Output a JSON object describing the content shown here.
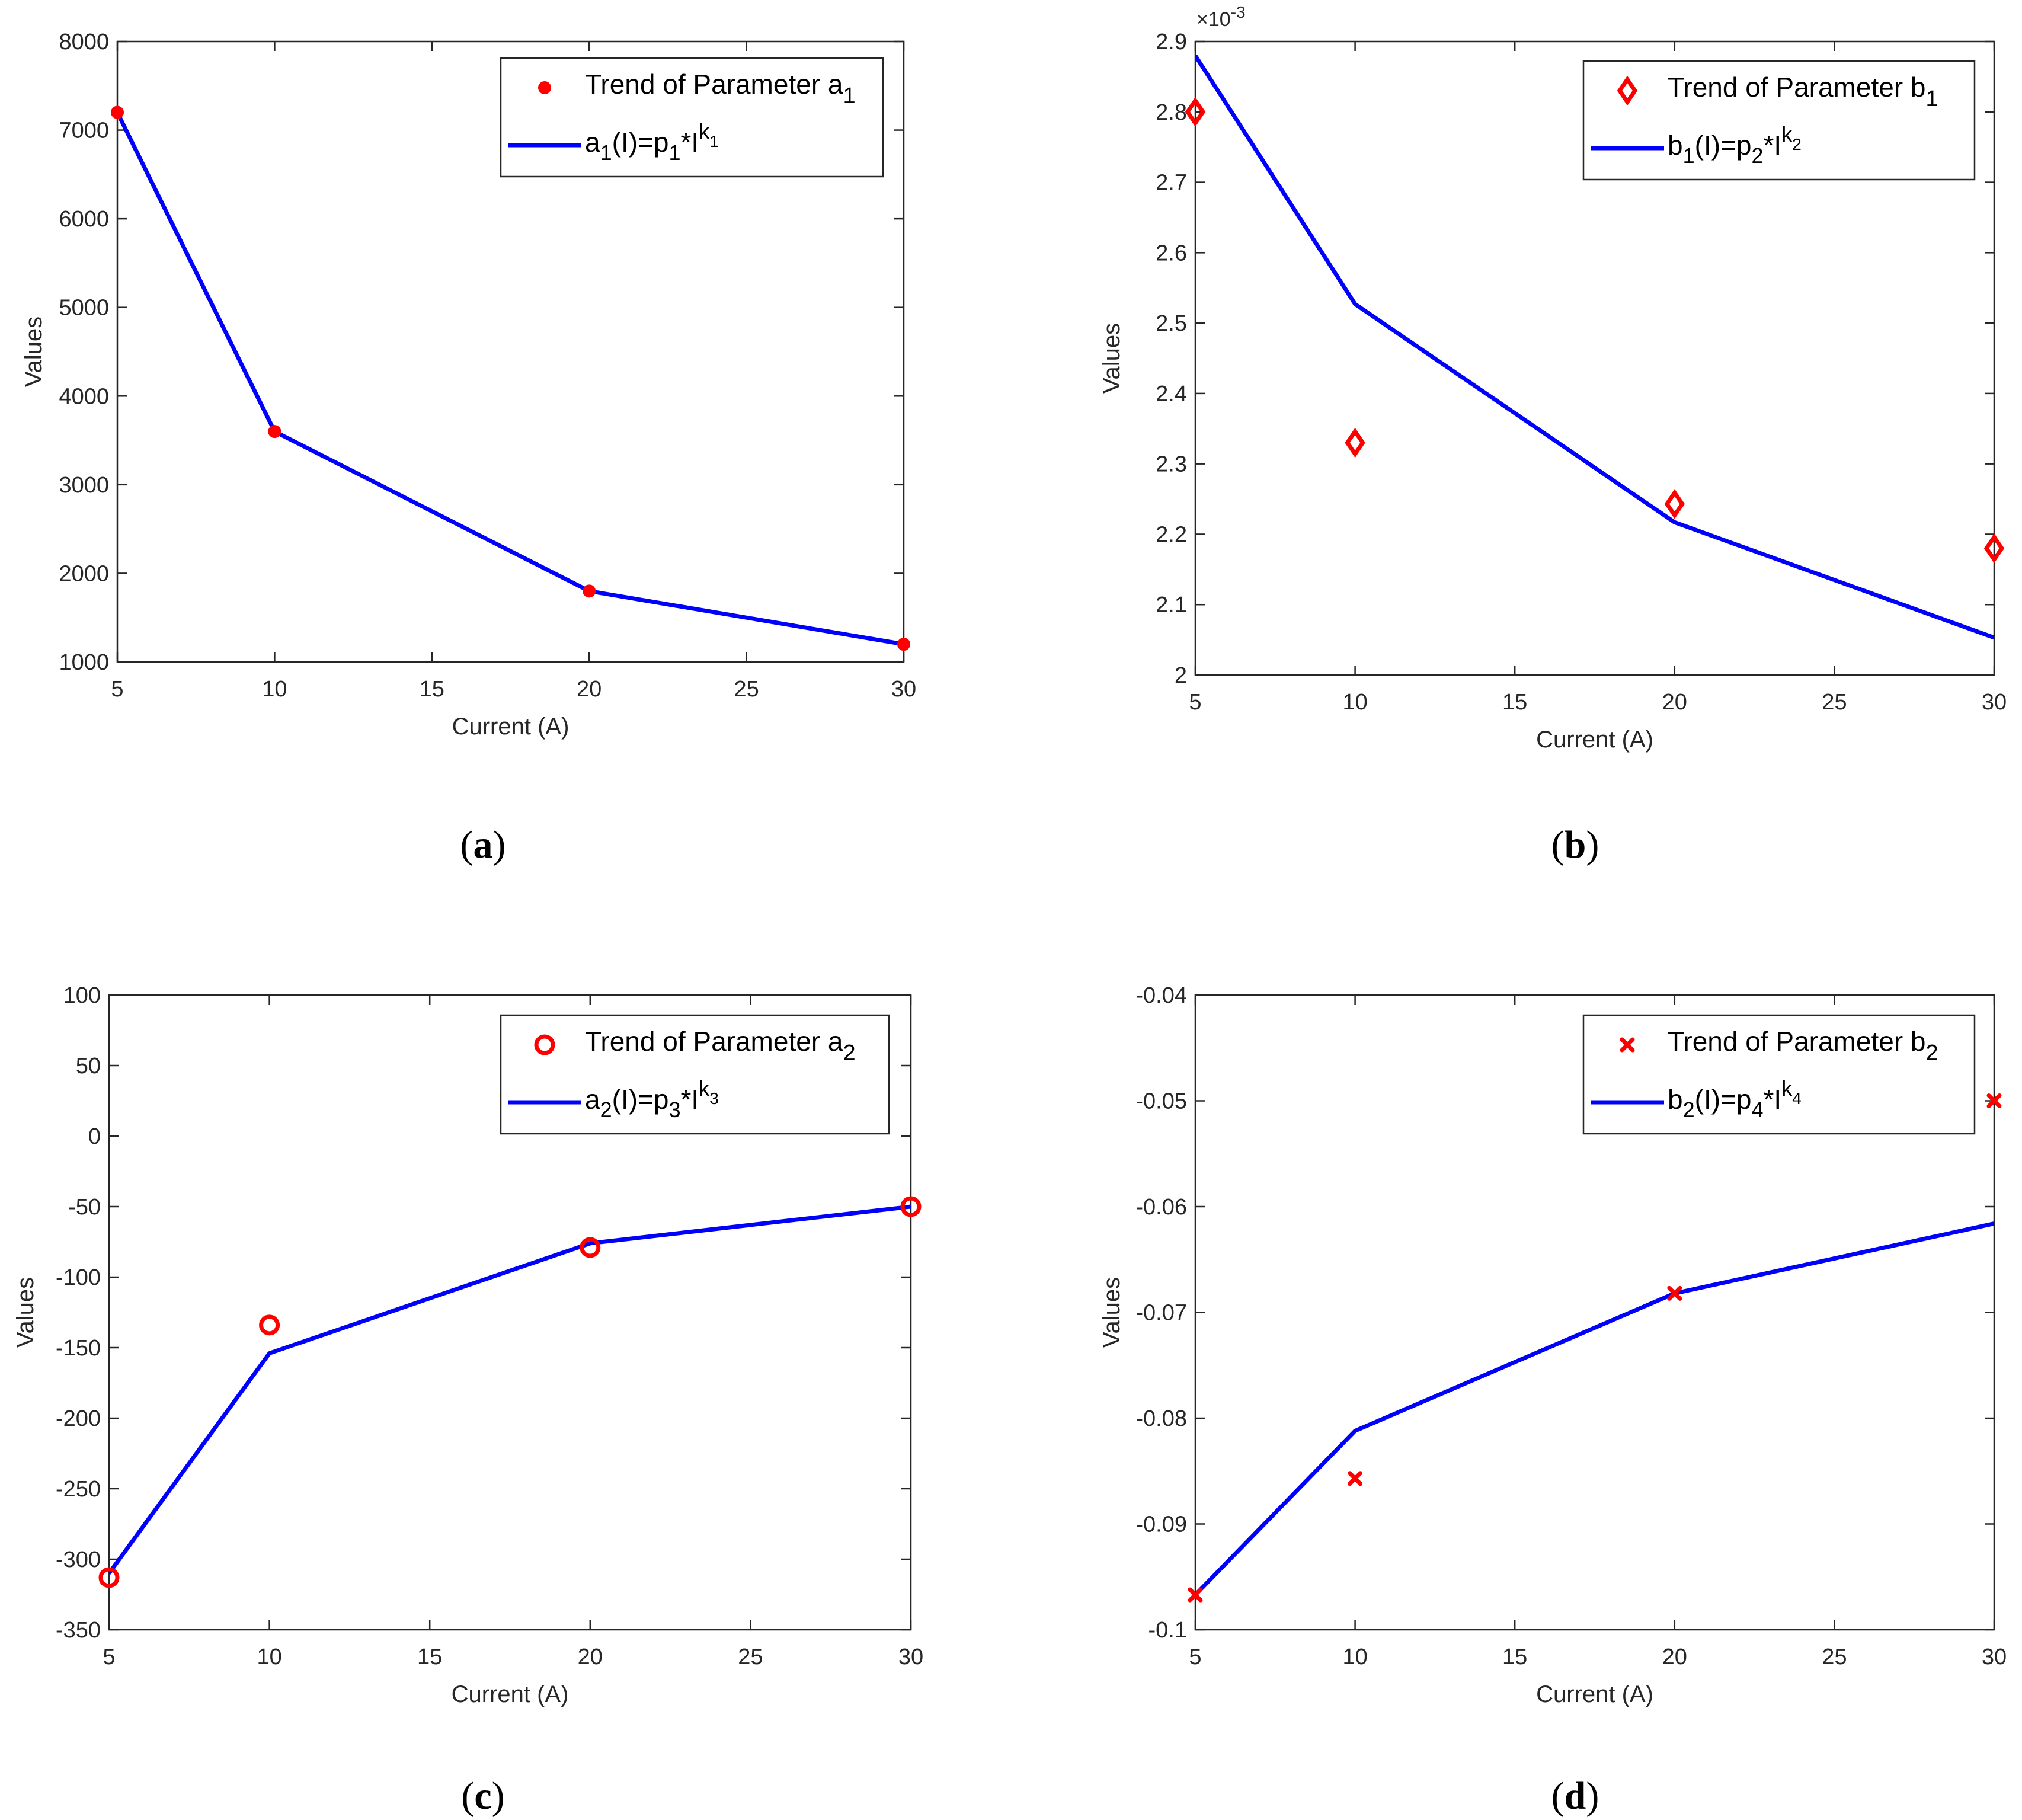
{
  "figure": {
    "panels": [
      {
        "id": "a",
        "caption": "a"
      },
      {
        "id": "b",
        "caption": "b"
      },
      {
        "id": "c",
        "caption": "c"
      },
      {
        "id": "d",
        "caption": "d"
      }
    ]
  },
  "chart_data": [
    {
      "panel": "a",
      "type": "line",
      "xlabel": "Current (A)",
      "ylabel": "Values",
      "xlim": [
        5,
        30
      ],
      "ylim": [
        1000,
        8000
      ],
      "xticks": [
        5,
        10,
        15,
        20,
        25,
        30
      ],
      "yticks": [
        1000,
        2000,
        3000,
        4000,
        5000,
        6000,
        7000,
        8000
      ],
      "tick_labels_x": [
        "5",
        "10",
        "15",
        "20",
        "25",
        "30"
      ],
      "tick_labels_y": [
        "1000",
        "2000",
        "3000",
        "4000",
        "5000",
        "6000",
        "7000",
        "8000"
      ],
      "exponent_label": "",
      "grid": false,
      "legend_position": "top-right",
      "series": [
        {
          "name": "Trend of Parameter a1",
          "legend_base": "Trend of Parameter a",
          "legend_sub": "1",
          "kind": "scatter",
          "marker": "filled-circle",
          "color": "#ff0000",
          "x": [
            5,
            10,
            20,
            30
          ],
          "y": [
            7200,
            3600,
            1800,
            1200
          ]
        },
        {
          "name": "a1(I)=p1*I^k1",
          "legend_parts": [
            "a",
            "1",
            "(I)=p",
            "1",
            "*I",
            "k",
            "1"
          ],
          "kind": "line",
          "color": "#0000ff",
          "x": [
            5,
            10,
            20,
            30
          ],
          "y": [
            7200,
            3600,
            1800,
            1200
          ]
        }
      ]
    },
    {
      "panel": "b",
      "type": "line",
      "xlabel": "Current (A)",
      "ylabel": "Values",
      "xlim": [
        5,
        30
      ],
      "ylim": [
        2.0,
        2.9
      ],
      "xticks": [
        5,
        10,
        15,
        20,
        25,
        30
      ],
      "yticks": [
        2.0,
        2.1,
        2.2,
        2.3,
        2.4,
        2.5,
        2.6,
        2.7,
        2.8,
        2.9
      ],
      "tick_labels_x": [
        "5",
        "10",
        "15",
        "20",
        "25",
        "30"
      ],
      "tick_labels_y": [
        "2",
        "2.1",
        "2.2",
        "2.3",
        "2.4",
        "2.5",
        "2.6",
        "2.7",
        "2.8",
        "2.9"
      ],
      "exponent_label": "×10",
      "exponent_power": "-3",
      "grid": false,
      "legend_position": "top-right",
      "series": [
        {
          "name": "Trend of Parameter b1",
          "legend_base": "Trend of Parameter b",
          "legend_sub": "1",
          "kind": "scatter",
          "marker": "diamond",
          "color": "#ff0000",
          "x": [
            5,
            10,
            20,
            30
          ],
          "y": [
            2.8,
            2.33,
            2.243,
            2.18
          ]
        },
        {
          "name": "b1(I)=p2*I^k2",
          "legend_parts": [
            "b",
            "1",
            "(I)=p",
            "2",
            "*I",
            "k",
            "2"
          ],
          "kind": "line",
          "color": "#0000ff",
          "x": [
            5,
            10,
            20,
            30
          ],
          "y": [
            2.88,
            2.527,
            2.217,
            2.053
          ]
        }
      ]
    },
    {
      "panel": "c",
      "type": "line",
      "xlabel": "Current (A)",
      "ylabel": "Values",
      "xlim": [
        5,
        30
      ],
      "ylim": [
        -350,
        100
      ],
      "xticks": [
        5,
        10,
        15,
        20,
        25,
        30
      ],
      "yticks": [
        -350,
        -300,
        -250,
        -200,
        -150,
        -100,
        -50,
        0,
        50,
        100
      ],
      "tick_labels_x": [
        "5",
        "10",
        "15",
        "20",
        "25",
        "30"
      ],
      "tick_labels_y": [
        "-350",
        "-300",
        "-250",
        "-200",
        "-150",
        "-100",
        "-50",
        "0",
        "50",
        "100"
      ],
      "exponent_label": "",
      "grid": false,
      "legend_position": "top-right",
      "series": [
        {
          "name": "Trend of Parameter a2",
          "legend_base": "Trend of Parameter a",
          "legend_sub": "2",
          "kind": "scatter",
          "marker": "open-circle",
          "color": "#ff0000",
          "x": [
            5,
            10,
            20,
            30
          ],
          "y": [
            -313,
            -134,
            -79,
            -50
          ]
        },
        {
          "name": "a2(I)=p3*I^k3",
          "legend_parts": [
            "a",
            "2",
            "(I)=p",
            "3",
            "*I",
            "k",
            "3"
          ],
          "kind": "line",
          "color": "#0000ff",
          "x": [
            5,
            10,
            20,
            30
          ],
          "y": [
            -310,
            -154,
            -76,
            -50
          ]
        }
      ]
    },
    {
      "panel": "d",
      "type": "line",
      "xlabel": "Current (A)",
      "ylabel": "Values",
      "xlim": [
        5,
        30
      ],
      "ylim": [
        -0.1,
        -0.04
      ],
      "xticks": [
        5,
        10,
        15,
        20,
        25,
        30
      ],
      "yticks": [
        -0.1,
        -0.09,
        -0.08,
        -0.07,
        -0.06,
        -0.05,
        -0.04
      ],
      "tick_labels_x": [
        "5",
        "10",
        "15",
        "20",
        "25",
        "30"
      ],
      "tick_labels_y": [
        "-0.1",
        "-0.09",
        "-0.08",
        "-0.07",
        "-0.06",
        "-0.05",
        "-0.04"
      ],
      "exponent_label": "",
      "grid": false,
      "legend_position": "top-right",
      "series": [
        {
          "name": "Trend of Parameter b2",
          "legend_base": "Trend of Parameter b",
          "legend_sub": "2",
          "kind": "scatter",
          "marker": "x",
          "color": "#ff0000",
          "x": [
            5,
            10,
            20,
            30
          ],
          "y": [
            -0.0967,
            -0.0857,
            -0.0682,
            -0.05
          ]
        },
        {
          "name": "b2(I)=p4*I^k4",
          "legend_parts": [
            "b",
            "2",
            "(I)=p",
            "4",
            "*I",
            "k",
            "4"
          ],
          "kind": "line",
          "color": "#0000ff",
          "x": [
            5,
            10,
            20,
            30
          ],
          "y": [
            -0.0967,
            -0.0812,
            -0.0682,
            -0.0616
          ]
        }
      ]
    }
  ]
}
